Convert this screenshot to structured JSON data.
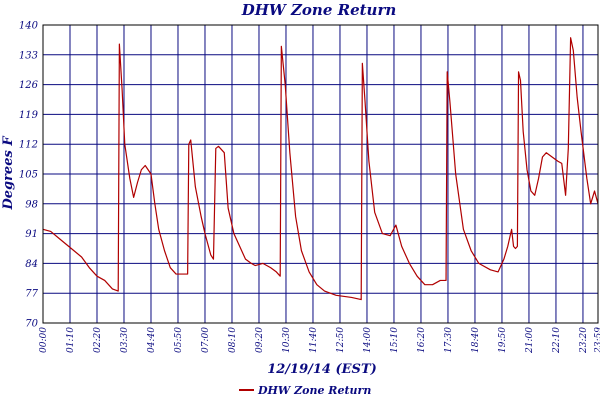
{
  "chart_data": {
    "type": "line",
    "title": "DHW Zone Return",
    "xlabel": "12/19/14 (EST)",
    "ylabel": "Degrees F",
    "ylim": [
      70,
      140
    ],
    "yticks": [
      "70",
      "77",
      "84",
      "91",
      "98",
      "105",
      "112",
      "119",
      "126",
      "133",
      "140"
    ],
    "xlim": [
      "00:00",
      "23:59"
    ],
    "xticks": [
      "00:00",
      "01:10",
      "02:20",
      "03:30",
      "04:40",
      "05:50",
      "07:00",
      "08:10",
      "09:20",
      "10:30",
      "11:40",
      "12:50",
      "14:00",
      "15:10",
      "16:20",
      "17:30",
      "18:40",
      "19:50",
      "21:00",
      "22:10",
      "23:20",
      "23:59"
    ],
    "grid": true,
    "legend_position": "bottom-center",
    "series": [
      {
        "name": "DHW Zone Return",
        "color": "#b00000",
        "points": [
          [
            "00:00",
            92
          ],
          [
            "00:20",
            91.5
          ],
          [
            "00:40",
            90
          ],
          [
            "01:00",
            88.5
          ],
          [
            "01:20",
            87
          ],
          [
            "01:40",
            85.5
          ],
          [
            "02:00",
            83
          ],
          [
            "02:20",
            81
          ],
          [
            "02:40",
            80
          ],
          [
            "03:00",
            78
          ],
          [
            "03:15",
            77.5
          ],
          [
            "03:18",
            135.5
          ],
          [
            "03:25",
            125
          ],
          [
            "03:32",
            112
          ],
          [
            "03:45",
            104
          ],
          [
            "03:55",
            99.5
          ],
          [
            "04:05",
            103
          ],
          [
            "04:15",
            106
          ],
          [
            "04:25",
            107
          ],
          [
            "04:40",
            105
          ],
          [
            "04:50",
            98
          ],
          [
            "05:00",
            92
          ],
          [
            "05:15",
            87
          ],
          [
            "05:30",
            83
          ],
          [
            "05:45",
            81.5
          ],
          [
            "06:15",
            81.5
          ],
          [
            "06:18",
            112
          ],
          [
            "06:23",
            113
          ],
          [
            "06:35",
            102
          ],
          [
            "06:50",
            95
          ],
          [
            "07:00",
            91
          ],
          [
            "07:15",
            86
          ],
          [
            "07:22",
            85
          ],
          [
            "07:28",
            111
          ],
          [
            "07:35",
            111.5
          ],
          [
            "07:50",
            110
          ],
          [
            "08:00",
            97
          ],
          [
            "08:15",
            91
          ],
          [
            "08:30",
            88
          ],
          [
            "08:45",
            85
          ],
          [
            "09:00",
            84
          ],
          [
            "09:10",
            83.5
          ],
          [
            "09:30",
            84
          ],
          [
            "09:50",
            83
          ],
          [
            "10:05",
            82
          ],
          [
            "10:15",
            81
          ],
          [
            "10:18",
            135
          ],
          [
            "10:28",
            126
          ],
          [
            "10:40",
            110
          ],
          [
            "10:55",
            95
          ],
          [
            "11:10",
            87
          ],
          [
            "11:30",
            82
          ],
          [
            "11:50",
            79
          ],
          [
            "12:10",
            77.5
          ],
          [
            "12:40",
            76.5
          ],
          [
            "13:20",
            76
          ],
          [
            "13:45",
            75.5
          ],
          [
            "13:48",
            131
          ],
          [
            "13:55",
            122
          ],
          [
            "14:05",
            108
          ],
          [
            "14:20",
            96
          ],
          [
            "14:40",
            91
          ],
          [
            "15:00",
            90.5
          ],
          [
            "15:15",
            93
          ],
          [
            "15:30",
            88
          ],
          [
            "15:50",
            84
          ],
          [
            "16:10",
            81
          ],
          [
            "16:30",
            79
          ],
          [
            "16:50",
            79
          ],
          [
            "17:10",
            80
          ],
          [
            "17:25",
            80
          ],
          [
            "17:28",
            129
          ],
          [
            "17:35",
            122
          ],
          [
            "17:50",
            105
          ],
          [
            "18:10",
            92
          ],
          [
            "18:30",
            87
          ],
          [
            "18:50",
            84
          ],
          [
            "19:20",
            82.5
          ],
          [
            "19:40",
            82
          ],
          [
            "19:55",
            85
          ],
          [
            "20:05",
            88
          ],
          [
            "20:15",
            92
          ],
          [
            "20:20",
            88
          ],
          [
            "20:25",
            87.5
          ],
          [
            "20:30",
            88
          ],
          [
            "20:33",
            129
          ],
          [
            "20:38",
            127
          ],
          [
            "20:45",
            115
          ],
          [
            "20:55",
            106
          ],
          [
            "21:05",
            101
          ],
          [
            "21:15",
            100
          ],
          [
            "21:25",
            104
          ],
          [
            "21:35",
            109
          ],
          [
            "21:45",
            110
          ],
          [
            "22:00",
            109
          ],
          [
            "22:15",
            108
          ],
          [
            "22:25",
            107.5
          ],
          [
            "22:35",
            100
          ],
          [
            "22:42",
            111
          ],
          [
            "22:48",
            137
          ],
          [
            "22:55",
            134
          ],
          [
            "23:05",
            123
          ],
          [
            "23:15",
            115
          ],
          [
            "23:30",
            104
          ],
          [
            "23:40",
            98
          ],
          [
            "23:50",
            101
          ],
          [
            "23:59",
            98
          ]
        ]
      }
    ]
  }
}
